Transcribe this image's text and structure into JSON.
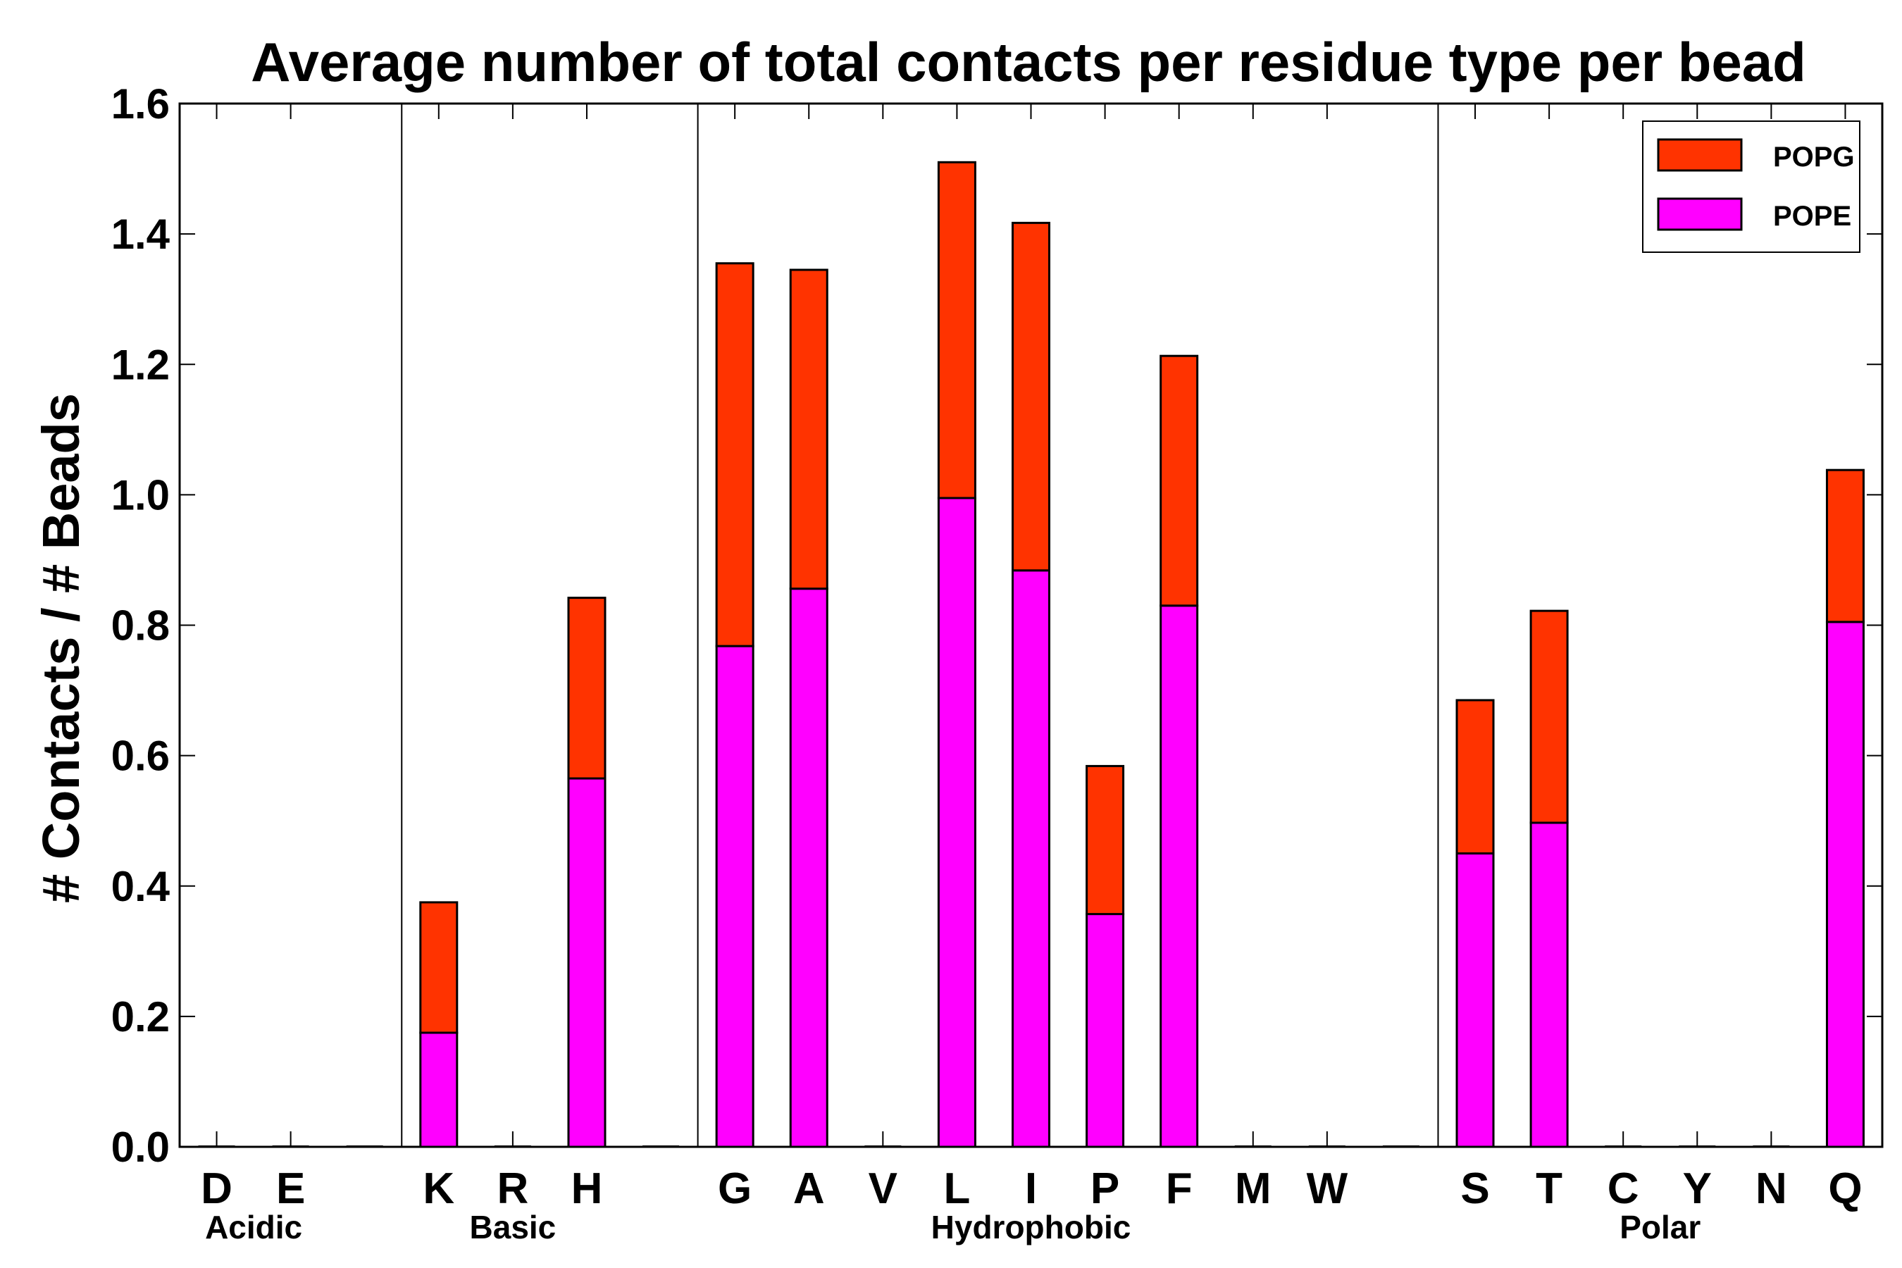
{
  "chart_data": {
    "type": "bar",
    "stacked": true,
    "title": "Average number of total contacts per residue type per bead",
    "xlabel": "",
    "ylabel": "# Contacts / # Beads",
    "ylim": [
      0.0,
      1.6
    ],
    "yticks": [
      "0.0",
      "0.2",
      "0.4",
      "0.6",
      "0.8",
      "1.0",
      "1.2",
      "1.4",
      "1.6"
    ],
    "categories": [
      "D",
      "E",
      "",
      "K",
      "R",
      "H",
      "",
      "G",
      "A",
      "V",
      "L",
      "I",
      "P",
      "F",
      "M",
      "W",
      "",
      "S",
      "T",
      "C",
      "Y",
      "N",
      "Q"
    ],
    "groups": [
      {
        "name": "Acidic",
        "start": 0,
        "end": 1
      },
      {
        "name": "Basic",
        "start": 3,
        "end": 5
      },
      {
        "name": "Hydrophobic",
        "start": 7,
        "end": 15
      },
      {
        "name": "Polar",
        "start": 17,
        "end": 22
      }
    ],
    "group_separators_after_index": [
      2,
      6,
      16
    ],
    "series": [
      {
        "name": "POPE",
        "color": "#ff00ff",
        "values": [
          0,
          0,
          0,
          0.175,
          0,
          0.565,
          0,
          0.768,
          0.856,
          0,
          0.995,
          0.884,
          0.357,
          0.83,
          0,
          0,
          0,
          0.45,
          0.497,
          0,
          0,
          0,
          0.805
        ]
      },
      {
        "name": "POPG",
        "color": "#ff3300",
        "values": [
          0,
          0,
          0,
          0.2,
          0,
          0.277,
          0,
          0.587,
          0.489,
          0,
          0.515,
          0.533,
          0.227,
          0.383,
          0,
          0,
          0,
          0.235,
          0.325,
          0,
          0,
          0,
          0.233
        ]
      }
    ],
    "legend": {
      "position": "top-right",
      "order": [
        "POPG",
        "POPE"
      ]
    },
    "grid": false
  }
}
